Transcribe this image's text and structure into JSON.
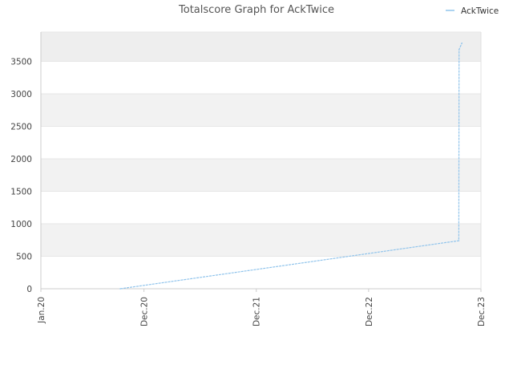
{
  "chart_data": {
    "type": "line",
    "title": "Totalscore Graph for AckTwice",
    "xlabel": "",
    "ylabel": "",
    "x_tick_labels": [
      "Jan.20",
      "Dec.20",
      "Dec.21",
      "Dec.22",
      "Dec.23"
    ],
    "x_ticks": [
      "2020-01-01",
      "2020-12-01",
      "2021-12-01",
      "2022-12-01",
      "2023-12-01"
    ],
    "xlim": [
      "2020-01-01",
      "2023-12-01"
    ],
    "ylim": [
      0,
      3950
    ],
    "y_ticks": [
      0,
      500,
      1000,
      1500,
      2000,
      2500,
      3000,
      3500
    ],
    "grid": true,
    "banded_background": true,
    "legend_position": "top-right",
    "series": [
      {
        "name": "AckTwice",
        "color": "#90c4ec",
        "points": [
          {
            "x": "2020-09-15",
            "y": 0
          },
          {
            "x": "2023-09-20",
            "y": 740
          },
          {
            "x": "2023-09-21",
            "y": 3680
          },
          {
            "x": "2023-09-30",
            "y": 3780
          }
        ]
      }
    ]
  }
}
